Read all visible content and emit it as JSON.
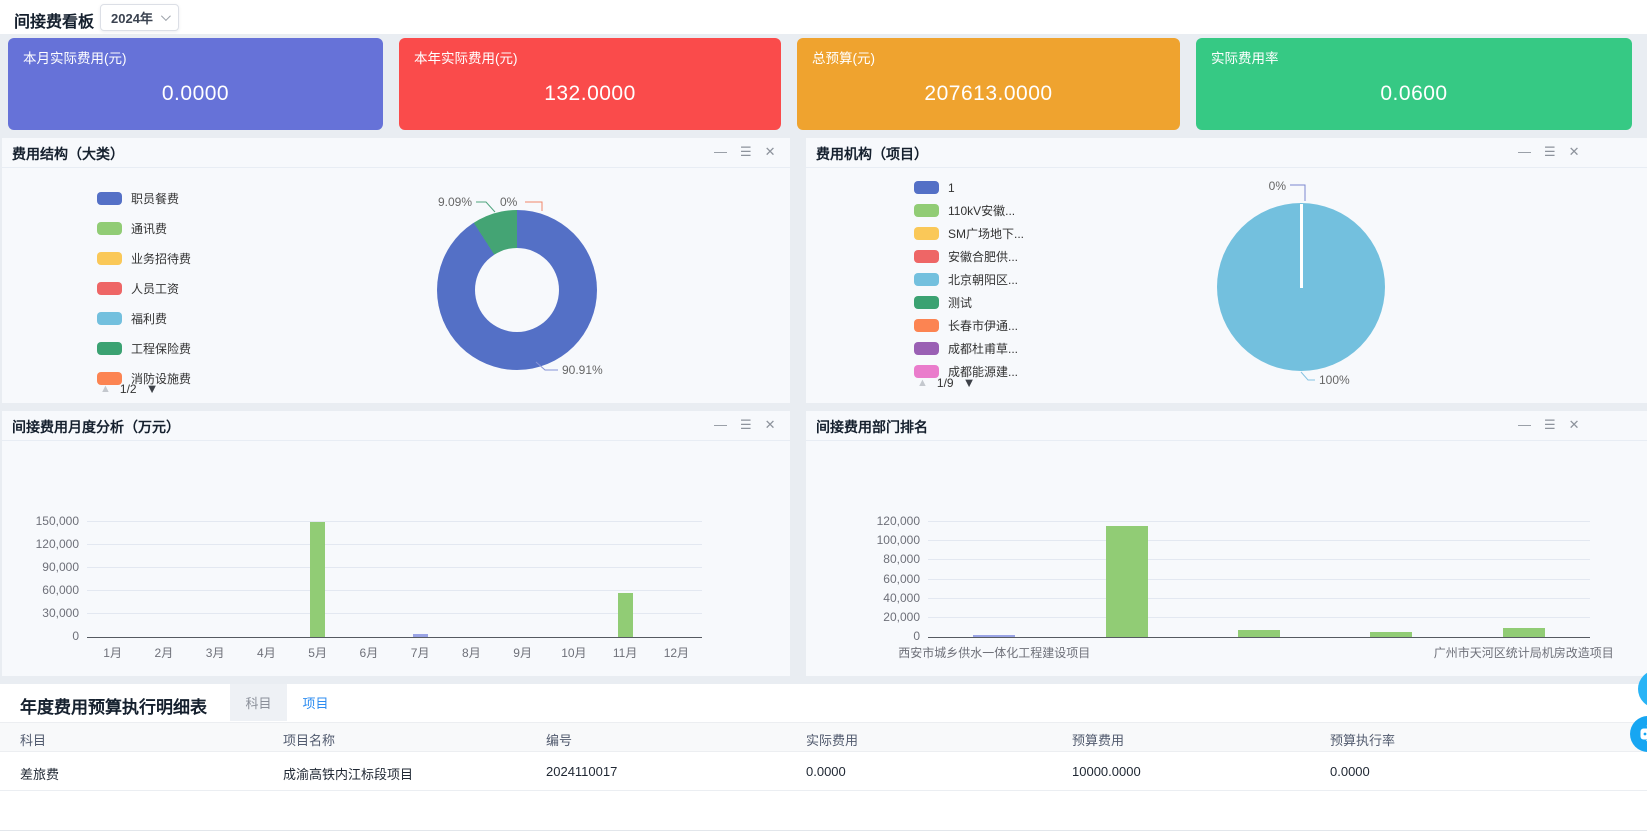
{
  "header": {
    "title": "间接费看板",
    "year_selector": {
      "value": "2024年"
    }
  },
  "kpis": [
    {
      "label": "本月实际费用(元)",
      "value": "0.0000",
      "color": "#6672d8"
    },
    {
      "label": "本年实际费用(元)",
      "value": "132.0000",
      "color": "#fa4b4b"
    },
    {
      "label": "总预算(元)",
      "value": "207613.0000",
      "color": "#efa32f"
    },
    {
      "label": "实际费用率",
      "value": "0.0600",
      "color": "#36c984"
    }
  ],
  "panel_controls": {
    "minimize": "—",
    "menu": "☰",
    "close": "✕"
  },
  "legend_pager_icons": {
    "up": "▲",
    "down": "▼"
  },
  "chart_data": [
    {
      "id": "expense_structure",
      "type": "pie",
      "donut": true,
      "title": "费用结构（大类）",
      "legend_position": "left",
      "legend_page": "1/2",
      "legend": [
        {
          "label": "职员餐费",
          "color": "#5470c6"
        },
        {
          "label": "通讯费",
          "color": "#91cc75"
        },
        {
          "label": "业务招待费",
          "color": "#fac858"
        },
        {
          "label": "人员工资",
          "color": "#ee6666"
        },
        {
          "label": "福利费",
          "color": "#73c0de"
        },
        {
          "label": "工程保险费",
          "color": "#3ba272"
        },
        {
          "label": "消防设施费",
          "color": "#fc8452"
        }
      ],
      "slices": [
        {
          "label": "90.91%",
          "value": 90.91,
          "color": "#5470c6"
        },
        {
          "label": "9.09%",
          "value": 9.09,
          "color": "#44a474"
        },
        {
          "label": "0%",
          "value": 0,
          "color": "#fc8452"
        }
      ]
    },
    {
      "id": "expense_org",
      "type": "pie",
      "donut": false,
      "title": "费用机构（项目）",
      "legend_position": "left",
      "legend_page": "1/9",
      "legend": [
        {
          "label": "1",
          "color": "#5470c6"
        },
        {
          "label": "110kV安徽...",
          "color": "#91cc75"
        },
        {
          "label": "SM广场地下...",
          "color": "#fac858"
        },
        {
          "label": "安徽合肥供...",
          "color": "#ee6666"
        },
        {
          "label": "北京朝阳区...",
          "color": "#73c0de"
        },
        {
          "label": "测试",
          "color": "#3ba272"
        },
        {
          "label": "长春市伊通...",
          "color": "#fc8452"
        },
        {
          "label": "成都杜甫草...",
          "color": "#9a60b4"
        },
        {
          "label": "成都能源建...",
          "color": "#ea7ccc"
        }
      ],
      "slices": [
        {
          "label": "100%",
          "value": 100,
          "color": "#73c0de"
        },
        {
          "label": "0%",
          "value": 0,
          "color": "#5470c6"
        }
      ]
    },
    {
      "id": "monthly",
      "type": "bar",
      "title": "间接费用月度分析（万元）",
      "categories": [
        "1月",
        "2月",
        "3月",
        "4月",
        "5月",
        "6月",
        "7月",
        "8月",
        "9月",
        "10月",
        "11月",
        "12月"
      ],
      "values": [
        0,
        0,
        0,
        0,
        150000,
        0,
        4000,
        0,
        0,
        0,
        58000,
        0
      ],
      "ylim": [
        0,
        150000
      ],
      "yticks": [
        0,
        30000,
        60000,
        90000,
        120000,
        150000
      ],
      "bar_color": "#91cc75",
      "color_overrides": {
        "6": "#9aa4e6"
      },
      "grid": true
    },
    {
      "id": "dept_rank",
      "type": "bar",
      "title": "间接费用部门排名",
      "categories": [
        "西安市城乡供水一体化工程建设项目",
        "",
        "",
        "",
        "广州市天河区统计局机房改造项目"
      ],
      "values": [
        1500,
        116000,
        7000,
        5500,
        9000
      ],
      "ylim": [
        0,
        120000
      ],
      "yticks": [
        0,
        20000,
        40000,
        60000,
        80000,
        100000,
        120000
      ],
      "bar_color": "#91cc75",
      "color_overrides": {
        "0": "#9aa4e6"
      },
      "grid": true
    }
  ],
  "table": {
    "title": "年度费用预算执行明细表",
    "tabs": [
      {
        "label": "科目",
        "active": false
      },
      {
        "label": "项目",
        "active": true
      }
    ],
    "columns": [
      "科目",
      "项目名称",
      "编号",
      "实际费用",
      "预算费用",
      "预算执行率"
    ],
    "rows": [
      [
        "差旅费",
        "成渝高铁内江标段项目",
        "2024110017",
        "0.0000",
        "10000.0000",
        "0.0000"
      ]
    ]
  },
  "floating": {
    "buttons": [
      {
        "icon": "circle-button"
      },
      {
        "icon": "chat-robot-icon"
      }
    ]
  },
  "colors": {
    "accent_blue": "#2d8cf0",
    "bar_green": "#91cc75",
    "tiny_bar_lavender": "#9aa4e6",
    "pie_lightblue": "#73c0de",
    "fab_blue": "#29b4f6"
  }
}
